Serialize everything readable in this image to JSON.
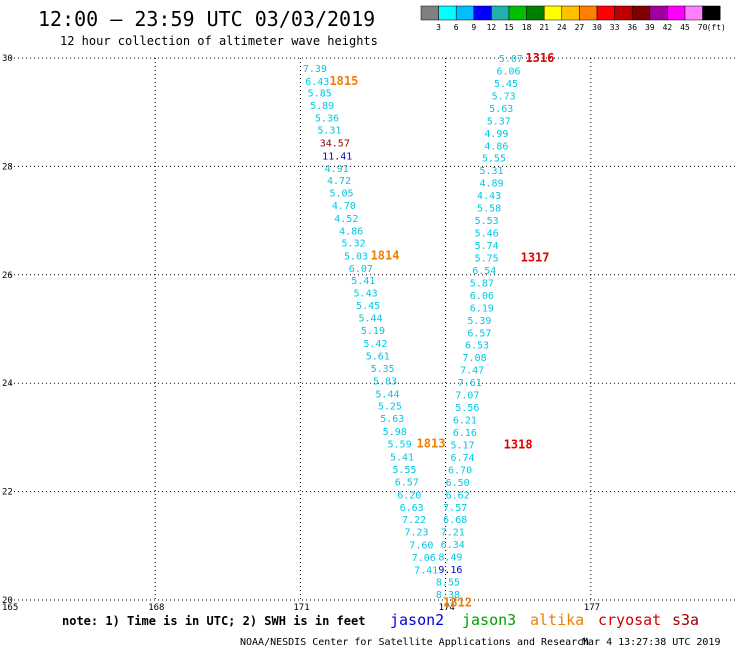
{
  "chart_data": {
    "type": "scatter",
    "title": "12:00 – 23:59 UTC 03/03/2019",
    "subtitle": "12 hour collection of altimeter wave heights",
    "xlim": [
      165,
      180
    ],
    "ylim": [
      20,
      30
    ],
    "x_ticks": [
      165,
      168,
      171,
      174,
      177
    ],
    "y_ticks": [
      20,
      22,
      24,
      26,
      28,
      30
    ],
    "grid": true,
    "colorbar": {
      "unit": "(ft)",
      "labels": [
        "3",
        "6",
        "9",
        "12",
        "15",
        "18",
        "21",
        "24",
        "27",
        "30",
        "33",
        "36",
        "39",
        "42",
        "45",
        "70"
      ],
      "colors": [
        "#808080",
        "#00ffff",
        "#00bfff",
        "#0000ff",
        "#20b2aa",
        "#00c000",
        "#008000",
        "#ffff00",
        "#ffc000",
        "#ff8000",
        "#ff0000",
        "#c00000",
        "#800000",
        "#a000a0",
        "#ff00ff",
        "#ff80ff",
        "#000000"
      ]
    },
    "series": [
      {
        "name": "jason2",
        "color": "#00c8e6",
        "points": [
          {
            "x": 171.05,
            "y": 29.82,
            "v": "7.39"
          },
          {
            "x": 171.1,
            "y": 29.58,
            "v": "6.43"
          },
          {
            "x": 171.15,
            "y": 29.36,
            "v": "5.85"
          },
          {
            "x": 171.2,
            "y": 29.13,
            "v": "5.89"
          },
          {
            "x": 171.3,
            "y": 28.9,
            "v": "5.36"
          },
          {
            "x": 171.35,
            "y": 28.68,
            "v": "5.31"
          },
          {
            "x": 171.4,
            "y": 28.44,
            "v": "34.57",
            "c": "#8b0000"
          },
          {
            "x": 171.45,
            "y": 28.2,
            "v": "11.41",
            "c": "#0000cd"
          },
          {
            "x": 171.5,
            "y": 27.97,
            "v": "4.91"
          },
          {
            "x": 171.55,
            "y": 27.75,
            "v": "4.72"
          },
          {
            "x": 171.6,
            "y": 27.52,
            "v": "5.05"
          },
          {
            "x": 171.65,
            "y": 27.29,
            "v": "4.70"
          },
          {
            "x": 171.7,
            "y": 27.05,
            "v": "4.52"
          },
          {
            "x": 171.8,
            "y": 26.82,
            "v": "4.86"
          },
          {
            "x": 171.85,
            "y": 26.6,
            "v": "5.32"
          },
          {
            "x": 171.9,
            "y": 26.36,
            "v": "5.03"
          },
          {
            "x": 172.0,
            "y": 26.13,
            "v": "6.07"
          },
          {
            "x": 172.05,
            "y": 25.9,
            "v": "5.41"
          },
          {
            "x": 172.1,
            "y": 25.67,
            "v": "5.43"
          },
          {
            "x": 172.15,
            "y": 25.44,
            "v": "5.45"
          },
          {
            "x": 172.2,
            "y": 25.21,
            "v": "5.44"
          },
          {
            "x": 172.25,
            "y": 24.98,
            "v": "5.19"
          },
          {
            "x": 172.3,
            "y": 24.74,
            "v": "5.42"
          },
          {
            "x": 172.35,
            "y": 24.51,
            "v": "5.61"
          },
          {
            "x": 172.45,
            "y": 24.28,
            "v": "5.35"
          },
          {
            "x": 172.5,
            "y": 24.05,
            "v": "5.83"
          },
          {
            "x": 172.55,
            "y": 23.81,
            "v": "5.44"
          },
          {
            "x": 172.6,
            "y": 23.59,
            "v": "5.25"
          },
          {
            "x": 172.65,
            "y": 23.36,
            "v": "5.63"
          },
          {
            "x": 172.7,
            "y": 23.12,
            "v": "5.98"
          },
          {
            "x": 172.8,
            "y": 22.89,
            "v": "5.59"
          },
          {
            "x": 172.85,
            "y": 22.65,
            "v": "5.41"
          },
          {
            "x": 172.9,
            "y": 22.42,
            "v": "5.55"
          },
          {
            "x": 172.95,
            "y": 22.19,
            "v": "6.57"
          },
          {
            "x": 173.0,
            "y": 21.95,
            "v": "6.20"
          },
          {
            "x": 173.05,
            "y": 21.72,
            "v": "6.63"
          },
          {
            "x": 173.1,
            "y": 21.49,
            "v": "7.22"
          },
          {
            "x": 173.15,
            "y": 21.26,
            "v": "7.23"
          },
          {
            "x": 173.25,
            "y": 21.02,
            "v": "7.60"
          },
          {
            "x": 173.3,
            "y": 20.79,
            "v": "7.06"
          },
          {
            "x": 173.35,
            "y": 20.56,
            "v": "7.41"
          }
        ]
      },
      {
        "name": "s3a",
        "color": "#00c8e6",
        "points": [
          {
            "x": 175.1,
            "y": 30.0,
            "v": "5.07"
          },
          {
            "x": 175.05,
            "y": 29.77,
            "v": "6.06"
          },
          {
            "x": 175.0,
            "y": 29.54,
            "v": "5.45"
          },
          {
            "x": 174.95,
            "y": 29.31,
            "v": "5.73"
          },
          {
            "x": 174.9,
            "y": 29.08,
            "v": "5.63"
          },
          {
            "x": 174.85,
            "y": 28.85,
            "v": "5.37"
          },
          {
            "x": 174.8,
            "y": 28.62,
            "v": "4.99"
          },
          {
            "x": 174.8,
            "y": 28.39,
            "v": "4.86"
          },
          {
            "x": 174.75,
            "y": 28.16,
            "v": "5.55"
          },
          {
            "x": 174.7,
            "y": 27.93,
            "v": "5.31"
          },
          {
            "x": 174.7,
            "y": 27.7,
            "v": "4.89"
          },
          {
            "x": 174.65,
            "y": 27.47,
            "v": "4.43"
          },
          {
            "x": 174.65,
            "y": 27.24,
            "v": "5.58"
          },
          {
            "x": 174.6,
            "y": 27.01,
            "v": "5.53"
          },
          {
            "x": 174.6,
            "y": 26.78,
            "v": "5.46"
          },
          {
            "x": 174.6,
            "y": 26.55,
            "v": "5.74"
          },
          {
            "x": 174.6,
            "y": 26.32,
            "v": "5.75"
          },
          {
            "x": 174.55,
            "y": 26.09,
            "v": "6.54"
          },
          {
            "x": 174.5,
            "y": 25.86,
            "v": "5.87"
          },
          {
            "x": 174.5,
            "y": 25.63,
            "v": "6.06"
          },
          {
            "x": 174.5,
            "y": 25.4,
            "v": "6.19"
          },
          {
            "x": 174.45,
            "y": 25.17,
            "v": "5.39"
          },
          {
            "x": 174.45,
            "y": 24.94,
            "v": "6.57"
          },
          {
            "x": 174.4,
            "y": 24.71,
            "v": "6.53"
          },
          {
            "x": 174.35,
            "y": 24.48,
            "v": "7.08"
          },
          {
            "x": 174.3,
            "y": 24.25,
            "v": "7.47"
          },
          {
            "x": 174.25,
            "y": 24.02,
            "v": "7.61"
          },
          {
            "x": 174.2,
            "y": 23.79,
            "v": "7.07"
          },
          {
            "x": 174.2,
            "y": 23.56,
            "v": "5.56"
          },
          {
            "x": 174.15,
            "y": 23.33,
            "v": "6.21"
          },
          {
            "x": 174.15,
            "y": 23.1,
            "v": "6.16"
          },
          {
            "x": 174.1,
            "y": 22.87,
            "v": "5.17"
          },
          {
            "x": 174.1,
            "y": 22.64,
            "v": "6.74"
          },
          {
            "x": 174.05,
            "y": 22.41,
            "v": "6.70"
          },
          {
            "x": 174.0,
            "y": 22.18,
            "v": "6.50"
          },
          {
            "x": 174.0,
            "y": 21.95,
            "v": "6.62"
          },
          {
            "x": 173.95,
            "y": 21.72,
            "v": "7.57"
          },
          {
            "x": 173.95,
            "y": 21.49,
            "v": "6.68"
          },
          {
            "x": 173.9,
            "y": 21.26,
            "v": "7.21"
          },
          {
            "x": 173.9,
            "y": 21.03,
            "v": "6.34"
          },
          {
            "x": 173.85,
            "y": 20.8,
            "v": "8.49"
          },
          {
            "x": 173.85,
            "y": 20.57,
            "v": "9.16",
            "c": "#0000cd"
          },
          {
            "x": 173.8,
            "y": 20.34,
            "v": "8.55"
          },
          {
            "x": 173.8,
            "y": 20.11,
            "v": "8.38"
          }
        ]
      }
    ],
    "pass_labels": [
      {
        "text": "1815",
        "x": 171.6,
        "y": 29.58,
        "color": "#f08000"
      },
      {
        "text": "1814",
        "x": 172.45,
        "y": 26.36,
        "color": "#f08000"
      },
      {
        "text": "1813",
        "x": 173.4,
        "y": 22.89,
        "color": "#f08000"
      },
      {
        "text": "1812",
        "x": 173.95,
        "y": 19.95,
        "color": "#f08000"
      },
      {
        "text": "1316",
        "x": 175.65,
        "y": 30.0,
        "color": "#e00000"
      },
      {
        "text": "1317",
        "x": 175.55,
        "y": 26.32,
        "color": "#e00000"
      },
      {
        "text": "1318",
        "x": 175.2,
        "y": 22.87,
        "color": "#e00000"
      }
    ]
  },
  "footer": {
    "note": "note: 1) Time is in UTC; 2) SWH is in feet",
    "legend": [
      {
        "name": "jason2",
        "color": "#0000dd"
      },
      {
        "name": "jason3",
        "color": "#00a000"
      },
      {
        "name": "altika",
        "color": "#f08000"
      },
      {
        "name": "cryosat",
        "color": "#d00000"
      },
      {
        "name": "s3a",
        "color": "#a00000"
      }
    ],
    "credit": "NOAA/NESDIS Center for Satellite Applications and Research",
    "timestamp": "Mar  4 13:27:38 UTC 2019"
  }
}
